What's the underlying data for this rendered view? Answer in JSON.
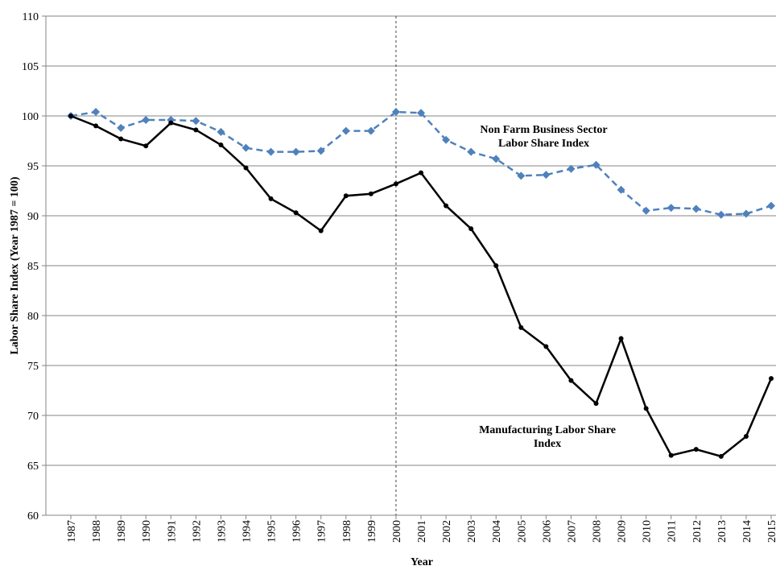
{
  "chart_data": {
    "type": "line",
    "x_label": "Year",
    "y_label": "Labor Share Index (Year 1987 = 100)",
    "categories": [
      "1987",
      "1988",
      "1989",
      "1990",
      "1991",
      "1992",
      "1993",
      "1994",
      "1995",
      "1996",
      "1997",
      "1998",
      "1999",
      "2000",
      "2001",
      "2002",
      "2003",
      "2004",
      "2005",
      "2006",
      "2007",
      "2008",
      "2009",
      "2010",
      "2011",
      "2012",
      "2013",
      "2014",
      "2015"
    ],
    "series": [
      {
        "name": "Non Farm Business Sector Labor Share Index",
        "color": "#4f81bd",
        "dash": true,
        "marker": "diamond",
        "values": [
          100,
          100.4,
          98.8,
          99.6,
          99.6,
          99.5,
          98.4,
          96.8,
          96.4,
          96.4,
          96.5,
          98.5,
          98.5,
          100.4,
          100.3,
          97.6,
          96.4,
          95.7,
          94.0,
          94.1,
          94.7,
          95.1,
          92.6,
          90.5,
          90.8,
          90.7,
          90.1,
          90.2,
          91.0
        ]
      },
      {
        "name": "Manufacturing Labor Share Index",
        "color": "#000000",
        "dash": false,
        "marker": "circle",
        "values": [
          100,
          99.0,
          97.7,
          97.0,
          99.3,
          98.6,
          97.1,
          94.8,
          91.7,
          90.3,
          88.5,
          92.0,
          92.2,
          93.2,
          94.3,
          91.0,
          88.7,
          85.0,
          78.8,
          76.9,
          73.5,
          71.2,
          77.7,
          70.7,
          66.0,
          66.6,
          65.9,
          67.9,
          73.7
        ]
      }
    ],
    "reference_line": "2000",
    "ylim": [
      60,
      110
    ],
    "yticks": [
      60,
      65,
      70,
      75,
      80,
      85,
      90,
      95,
      100,
      105,
      110
    ],
    "grid": true
  }
}
